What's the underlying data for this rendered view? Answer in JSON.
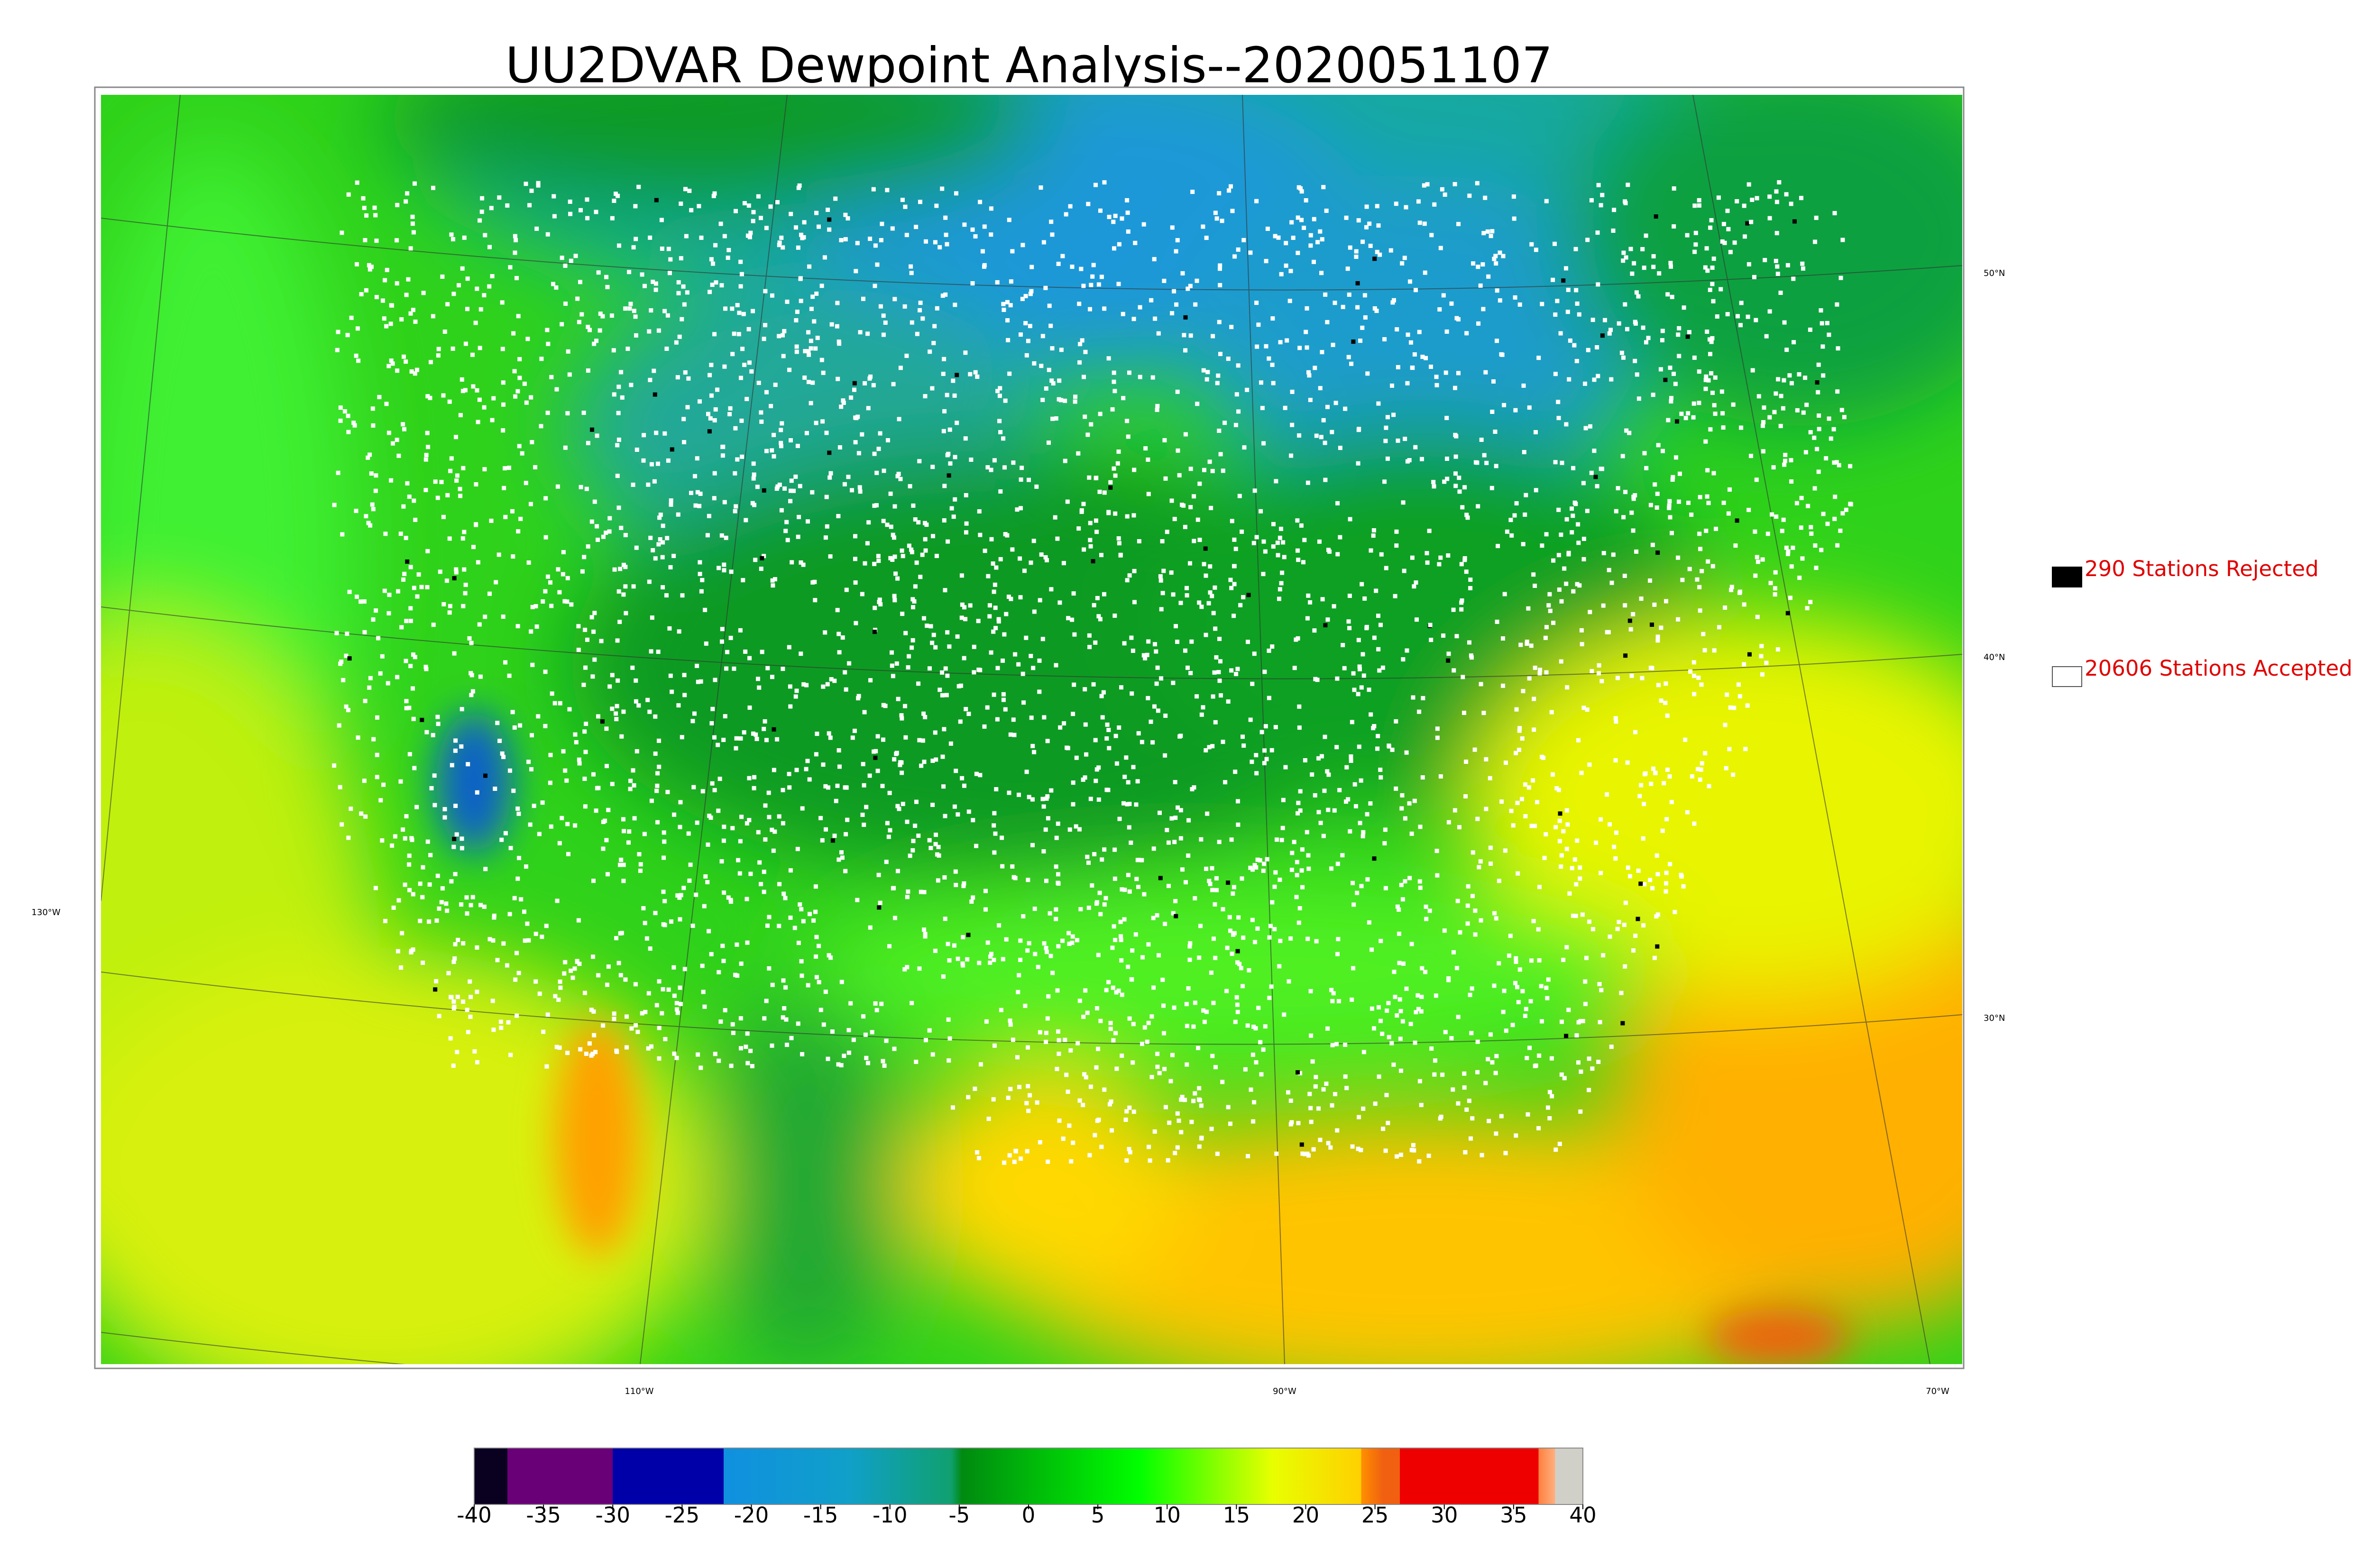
{
  "title": "UU2DVAR Dewpoint Analysis--2020051107",
  "legend": [
    {
      "label": "290 Stations Rejected",
      "color": "#000000"
    },
    {
      "label": "20606 Stations Accepted",
      "color": "#ffffff"
    }
  ],
  "latitude_labels": [
    "50°N",
    "40°N",
    "30°N"
  ],
  "longitude_labels": [
    "130°W",
    "110°W",
    "90°W",
    "70°W"
  ],
  "colorbar": {
    "ticks": [
      -40,
      -35,
      -30,
      -25,
      -20,
      -15,
      -10,
      -5,
      0,
      5,
      10,
      15,
      20,
      25,
      30,
      35,
      40
    ]
  }
}
